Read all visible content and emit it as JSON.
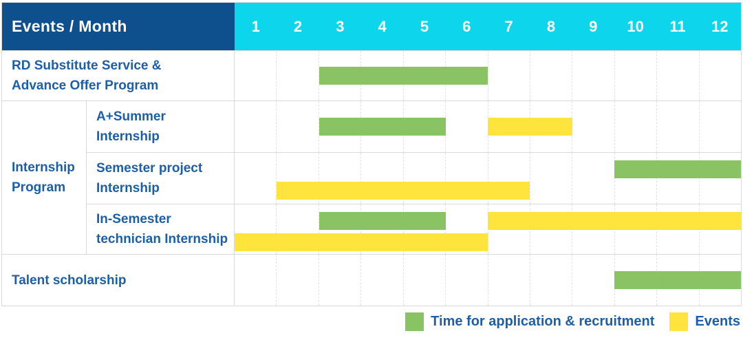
{
  "header": {
    "title": "Events / Month",
    "months": [
      "1",
      "2",
      "3",
      "4",
      "5",
      "6",
      "7",
      "8",
      "9",
      "10",
      "11",
      "12"
    ]
  },
  "legend": {
    "items": [
      {
        "color_key": "green",
        "label": "Time for application & recruitment"
      },
      {
        "color_key": "yellow",
        "label": "Events"
      }
    ]
  },
  "colors": {
    "header_bg": "#0e4f8e",
    "months_bg": "#0cd5ec",
    "label_text": "#1c5ea8",
    "green": "#8ac364",
    "yellow": "#ffe43e",
    "grid_border": "#d9d9d9",
    "grid_dash": "#e0e3e6"
  },
  "chart_data": {
    "type": "gantt",
    "x_unit": "month",
    "x_range": [
      1,
      12
    ],
    "legend": {
      "green": "Time for application & recruitment",
      "yellow": "Events"
    },
    "rows": [
      {
        "label": "RD Substitute Service &\nAdvance Offer Program",
        "group": null,
        "bars": [
          {
            "color": "green",
            "start_month": 3,
            "end_month": 6,
            "level": "center"
          }
        ]
      },
      {
        "label": "A+Summer\nInternship",
        "group": "Internship\nProgram",
        "bars": [
          {
            "color": "green",
            "start_month": 3,
            "end_month": 5,
            "level": "center"
          },
          {
            "color": "yellow",
            "start_month": 7,
            "end_month": 8,
            "level": "center"
          }
        ]
      },
      {
        "label": "Semester project\nInternship",
        "group": "Internship\nProgram",
        "bars": [
          {
            "color": "green",
            "start_month": 10,
            "end_month": 12,
            "level": "top"
          },
          {
            "color": "yellow",
            "start_month": 2,
            "end_month": 7,
            "level": "bottom"
          }
        ]
      },
      {
        "label": "In-Semester\ntechnician Internship",
        "group": "Internship\nProgram",
        "bars": [
          {
            "color": "green",
            "start_month": 3,
            "end_month": 5,
            "level": "top"
          },
          {
            "color": "yellow",
            "start_month": 7,
            "end_month": 12,
            "level": "top"
          },
          {
            "color": "yellow",
            "start_month": 1,
            "end_month": 6,
            "level": "bottom"
          }
        ]
      },
      {
        "label": "Talent scholarship",
        "group": null,
        "bars": [
          {
            "color": "green",
            "start_month": 10,
            "end_month": 12,
            "level": "center"
          }
        ]
      }
    ]
  }
}
